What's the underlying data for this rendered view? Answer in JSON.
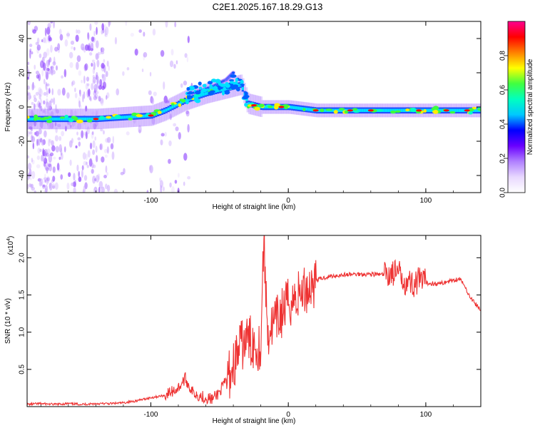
{
  "title": "C2E1.2025.167.18.29.G13",
  "charts": [
    {
      "type": "heatmap",
      "xlabel": "Height of straight line (km)",
      "ylabel": "Frequency (Hz)",
      "xlim": [
        -190,
        140
      ],
      "ylim": [
        -50,
        50
      ],
      "xticks": [
        -100,
        0,
        100
      ],
      "yticks": [
        40,
        20,
        0,
        -20,
        -40
      ],
      "colorbar": {
        "label": "Normalized spectral amplitude",
        "range": [
          0,
          1
        ],
        "ticks": [
          "0.0",
          "0.2",
          "0.4",
          "0.6",
          "0.8"
        ],
        "tick_values": [
          0,
          0.2,
          0.4,
          0.6,
          0.8
        ],
        "colors": [
          "#ffffff",
          "#e8d8ff",
          "#b080ff",
          "#6a00ff",
          "#0000ff",
          "#00c8ff",
          "#00ffc0",
          "#40ff40",
          "#ffff00",
          "#ff8000",
          "#ff0000",
          "#ff0090"
        ]
      },
      "signal_track": {
        "description_points": [
          {
            "x": -190,
            "f": -7
          },
          {
            "x": -140,
            "f": -7
          },
          {
            "x": -120,
            "f": -6
          },
          {
            "x": -100,
            "f": -5
          },
          {
            "x": -90,
            "f": -2
          },
          {
            "x": -75,
            "f": 4
          },
          {
            "x": -60,
            "f": 8
          },
          {
            "x": -45,
            "f": 11
          },
          {
            "x": -35,
            "f": 13
          },
          {
            "x": -30,
            "f": 2
          },
          {
            "x": -20,
            "f": 0
          },
          {
            "x": 0,
            "f": 0
          },
          {
            "x": 20,
            "f": -2
          },
          {
            "x": 60,
            "f": -2
          },
          {
            "x": 100,
            "f": -2
          },
          {
            "x": 140,
            "f": -2
          }
        ],
        "upper_branch": [
          {
            "x": -70,
            "f": 8
          },
          {
            "x": -55,
            "f": 12
          },
          {
            "x": -45,
            "f": 16
          },
          {
            "x": -40,
            "f": 20
          }
        ]
      },
      "color_series": {
        "track": "#00e0ff",
        "peak": "#ff0000",
        "halo": "#b080ff",
        "noise": "#8a3cff"
      }
    },
    {
      "type": "line",
      "xlabel": "Height of straight line (km)",
      "ylabel": "SNR (10 * v/v)",
      "y_multiplier": "(x10",
      "y_multiplier_exp": "4",
      "xlim": [
        -190,
        140
      ],
      "ylim": [
        0,
        2.3
      ],
      "xticks": [
        -100,
        0,
        100
      ],
      "yticks": [
        0.5,
        1.0,
        1.5,
        2.0
      ],
      "ytick_labels": [
        "0.5",
        "1.0",
        "1.5",
        "2.0"
      ],
      "color": "#ee3333",
      "points": [
        [
          -190,
          0.03
        ],
        [
          -180,
          0.04
        ],
        [
          -170,
          0.03
        ],
        [
          -160,
          0.04
        ],
        [
          -150,
          0.03
        ],
        [
          -140,
          0.04
        ],
        [
          -130,
          0.04
        ],
        [
          -120,
          0.05
        ],
        [
          -110,
          0.08
        ],
        [
          -100,
          0.12
        ],
        [
          -90,
          0.15
        ],
        [
          -80,
          0.25
        ],
        [
          -75,
          0.38
        ],
        [
          -70,
          0.2
        ],
        [
          -65,
          0.15
        ],
        [
          -60,
          0.12
        ],
        [
          -55,
          0.1
        ],
        [
          -50,
          0.2
        ],
        [
          -45,
          0.35
        ],
        [
          -40,
          0.55
        ],
        [
          -35,
          0.8
        ],
        [
          -30,
          0.9
        ],
        [
          -25,
          0.85
        ],
        [
          -20,
          0.8
        ],
        [
          -18,
          2.25
        ],
        [
          -15,
          1.0
        ],
        [
          -10,
          1.1
        ],
        [
          -5,
          1.25
        ],
        [
          0,
          1.4
        ],
        [
          5,
          1.45
        ],
        [
          10,
          1.55
        ],
        [
          15,
          1.6
        ],
        [
          20,
          1.7
        ],
        [
          30,
          1.75
        ],
        [
          40,
          1.77
        ],
        [
          50,
          1.78
        ],
        [
          60,
          1.78
        ],
        [
          70,
          1.77
        ],
        [
          75,
          1.8
        ],
        [
          80,
          1.78
        ],
        [
          85,
          1.7
        ],
        [
          90,
          1.65
        ],
        [
          95,
          1.68
        ],
        [
          100,
          1.66
        ],
        [
          110,
          1.65
        ],
        [
          120,
          1.7
        ],
        [
          125,
          1.72
        ],
        [
          130,
          1.55
        ],
        [
          135,
          1.4
        ],
        [
          140,
          1.3
        ]
      ]
    }
  ]
}
